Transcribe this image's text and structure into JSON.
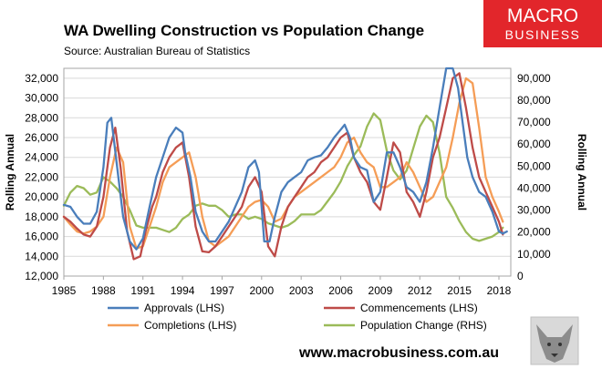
{
  "chart_data": {
    "type": "line",
    "title": "WA Dwelling Construction vs Population Change",
    "subtitle": "Source: Australian Bureau of Statistics",
    "ylabel_left": "Rolling Annual",
    "ylabel_right": "Rolling Annual",
    "x_range": [
      1985,
      2018.9
    ],
    "x_ticks": [
      1985,
      1988,
      1991,
      1994,
      1997,
      2000,
      2003,
      2006,
      2009,
      2012,
      2015,
      2018
    ],
    "x_tick_labels": [
      "1985",
      "1988",
      "1991",
      "1994",
      "1997",
      "2000",
      "2003",
      "2006",
      "2009",
      "2012",
      "2015",
      "2018"
    ],
    "y_left_range": [
      12000,
      33000
    ],
    "y_left_ticks": [
      12000,
      14000,
      16000,
      18000,
      20000,
      22000,
      24000,
      26000,
      28000,
      30000,
      32000
    ],
    "y_left_tick_labels": [
      "12,000",
      "14,000",
      "16,000",
      "18,000",
      "20,000",
      "22,000",
      "24,000",
      "26,000",
      "28,000",
      "30,000",
      "32,000"
    ],
    "y_right_range": [
      0,
      94500
    ],
    "y_right_ticks": [
      0,
      10000,
      20000,
      30000,
      40000,
      50000,
      60000,
      70000,
      80000,
      90000
    ],
    "y_right_tick_labels": [
      "0",
      "10,000",
      "20,000",
      "30,000",
      "40,000",
      "50,000",
      "60,000",
      "70,000",
      "80,000",
      "90,000"
    ],
    "series": [
      {
        "name": "Approvals (LHS)",
        "axis": "left",
        "color": "#4a7ebb",
        "x": [
          1985,
          1985.5,
          1986,
          1986.5,
          1987,
          1987.5,
          1988,
          1988.3,
          1988.6,
          1989,
          1989.5,
          1990,
          1990.5,
          1991,
          1991.5,
          1992,
          1992.5,
          1993,
          1993.5,
          1994,
          1994.2,
          1994.6,
          1995,
          1995.5,
          1996,
          1996.5,
          1997,
          1997.5,
          1998,
          1998.5,
          1999,
          1999.5,
          1999.8,
          2000.2,
          2000.6,
          2001,
          2001.5,
          2002,
          2002.5,
          2003,
          2003.5,
          2004,
          2004.5,
          2005,
          2005.5,
          2006,
          2006.3,
          2006.7,
          2007,
          2007.5,
          2008,
          2008.5,
          2009,
          2009.5,
          2010,
          2010.5,
          2011,
          2011.5,
          2012,
          2012.5,
          2013,
          2013.5,
          2014,
          2014.5,
          2014.9,
          2015.2,
          2015.6,
          2016,
          2016.5,
          2017,
          2017.5,
          2018,
          2018.3,
          2018.6
        ],
        "y": [
          19200,
          19000,
          18000,
          17300,
          17300,
          18500,
          23000,
          27500,
          28000,
          23500,
          18000,
          15500,
          14700,
          15800,
          19000,
          22000,
          24000,
          26000,
          27000,
          26500,
          24500,
          22000,
          18500,
          16500,
          15500,
          15500,
          16500,
          17500,
          19000,
          20500,
          23000,
          23700,
          22500,
          15500,
          15500,
          18000,
          20500,
          21500,
          22000,
          22500,
          23700,
          24000,
          24200,
          25000,
          26000,
          26800,
          27300,
          26000,
          24000,
          23000,
          22700,
          19500,
          20500,
          24500,
          24500,
          23000,
          21000,
          20500,
          19500,
          21500,
          25000,
          29000,
          33000,
          33000,
          31000,
          28000,
          24000,
          22000,
          20500,
          20000,
          18500,
          16500,
          16300,
          16500
        ]
      },
      {
        "name": "Commencements (LHS)",
        "axis": "left",
        "color": "#be4b48",
        "x": [
          1985,
          1985.5,
          1986,
          1986.5,
          1987,
          1987.5,
          1988,
          1988.5,
          1988.9,
          1989.3,
          1989.8,
          1990.3,
          1990.8,
          1991.2,
          1991.7,
          1992,
          1992.5,
          1993,
          1993.5,
          1994,
          1994.5,
          1995,
          1995.5,
          1996,
          1996.5,
          1997,
          1997.5,
          1998,
          1998.5,
          1999,
          1999.5,
          2000,
          2000.5,
          2001,
          2001.5,
          2002,
          2002.5,
          2003,
          2003.5,
          2004,
          2004.5,
          2005,
          2005.5,
          2006,
          2006.5,
          2007,
          2007.5,
          2008,
          2008.5,
          2009,
          2009.5,
          2010,
          2010.5,
          2011,
          2011.5,
          2012,
          2012.5,
          2013,
          2013.5,
          2014,
          2014.5,
          2015,
          2015.5,
          2016,
          2016.5,
          2017,
          2017.5,
          2018,
          2018.3
        ],
        "y": [
          18000,
          17500,
          16800,
          16200,
          16000,
          17000,
          20000,
          25000,
          27000,
          23000,
          16500,
          13700,
          14000,
          16500,
          19000,
          20000,
          22500,
          24000,
          25000,
          25500,
          22000,
          17000,
          14500,
          14400,
          15000,
          16000,
          17000,
          18000,
          19000,
          21000,
          22000,
          20500,
          15000,
          14000,
          17000,
          19000,
          20000,
          21000,
          22000,
          22500,
          23500,
          24000,
          25000,
          26000,
          26500,
          24000,
          22500,
          21500,
          19500,
          18700,
          22000,
          25500,
          24500,
          20500,
          19500,
          18000,
          20500,
          24000,
          26000,
          29000,
          32000,
          32500,
          29000,
          25000,
          22000,
          20500,
          19000,
          17500,
          16200
        ]
      },
      {
        "name": "Completions (LHS)",
        "axis": "left",
        "color": "#f59d56",
        "x": [
          1985,
          1985.5,
          1986,
          1986.5,
          1987,
          1987.5,
          1988,
          1988.5,
          1989,
          1989.5,
          1990,
          1990.5,
          1991,
          1991.5,
          1992,
          1992.5,
          1993,
          1993.5,
          1994,
          1994.5,
          1995,
          1995.5,
          1996,
          1996.5,
          1997,
          1997.5,
          1998,
          1998.5,
          1999,
          1999.5,
          2000,
          2000.5,
          2001,
          2001.5,
          2002,
          2002.5,
          2003,
          2003.5,
          2004,
          2004.5,
          2005,
          2005.5,
          2006,
          2006.5,
          2007,
          2007.5,
          2008,
          2008.5,
          2009,
          2009.5,
          2010,
          2010.5,
          2011,
          2011.5,
          2012,
          2012.5,
          2013,
          2013.5,
          2014,
          2014.5,
          2015,
          2015.5,
          2016,
          2016.5,
          2017,
          2017.5,
          2018,
          2018.3
        ],
        "y": [
          18000,
          17200,
          16500,
          16300,
          16500,
          17000,
          18000,
          22000,
          25000,
          23500,
          17000,
          14800,
          15000,
          17000,
          19000,
          21500,
          23000,
          23500,
          24000,
          24500,
          22000,
          18000,
          15500,
          15000,
          15500,
          16000,
          17000,
          18000,
          19000,
          19500,
          19700,
          19000,
          17500,
          17800,
          19000,
          20000,
          20500,
          21000,
          21500,
          22000,
          22500,
          23000,
          24000,
          25500,
          26000,
          24500,
          23500,
          23000,
          21000,
          21000,
          21500,
          22000,
          23500,
          22500,
          21000,
          19500,
          20000,
          21500,
          23000,
          26000,
          29500,
          32000,
          31500,
          27000,
          22000,
          20000,
          18500,
          17500
        ]
      },
      {
        "name": "Population Change (RHS)",
        "axis": "right",
        "color": "#9bbb59",
        "x": [
          1985,
          1985.5,
          1986,
          1986.5,
          1987,
          1987.5,
          1988,
          1988.5,
          1989,
          1989.5,
          1990,
          1990.5,
          1991,
          1991.5,
          1992,
          1992.5,
          1993,
          1993.5,
          1994,
          1994.5,
          1995,
          1995.5,
          1996,
          1996.5,
          1997,
          1997.5,
          1998,
          1998.5,
          1999,
          1999.5,
          2000,
          2000.5,
          2001,
          2001.5,
          2002,
          2002.5,
          2003,
          2003.5,
          2004,
          2004.5,
          2005,
          2005.5,
          2006,
          2006.5,
          2007,
          2007.5,
          2008,
          2008.5,
          2009,
          2009.5,
          2010,
          2010.5,
          2011,
          2011.5,
          2012,
          2012.5,
          2013,
          2013.5,
          2014,
          2014.5,
          2015,
          2015.5,
          2016,
          2016.5,
          2017,
          2017.5,
          2018,
          2018.3
        ],
        "y": [
          32000,
          38000,
          41000,
          40000,
          37000,
          38000,
          45000,
          43000,
          40000,
          36000,
          30000,
          23000,
          22000,
          22000,
          22000,
          21000,
          20000,
          22000,
          26000,
          28000,
          32000,
          33000,
          32000,
          32000,
          30000,
          27000,
          28000,
          28000,
          26000,
          27000,
          26000,
          24000,
          23000,
          22000,
          23000,
          25000,
          28000,
          28000,
          28000,
          30000,
          34000,
          38000,
          43000,
          50000,
          55000,
          59000,
          68000,
          74000,
          71000,
          57000,
          48000,
          44000,
          48000,
          58000,
          68000,
          73000,
          70000,
          56000,
          36000,
          31000,
          25000,
          20000,
          17000,
          16000,
          17000,
          18000,
          20000,
          22000
        ]
      }
    ],
    "legend_position": "bottom"
  },
  "branding": {
    "logo_line1": "MACRO",
    "logo_line2": "BUSINESS",
    "logo_color": "#e2262b",
    "website": "www.macrobusiness.com.au"
  }
}
